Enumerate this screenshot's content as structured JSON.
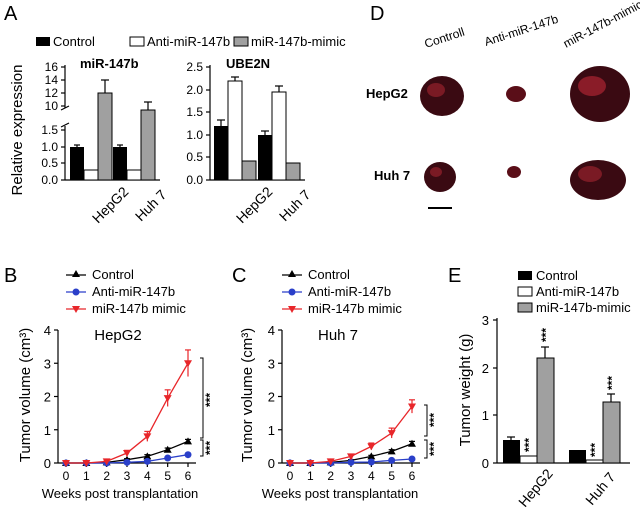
{
  "colors": {
    "control": "#000000",
    "anti": "#ffffff",
    "mimic": "#a0a0a0",
    "line_anti": "#2a3fc9",
    "line_mimic": "#e8262a",
    "tissue": "#3a0a12"
  },
  "panel_labels": {
    "A": "A",
    "B": "B",
    "C": "C",
    "D": "D",
    "E": "E"
  },
  "chart_data": [
    {
      "id": "A1",
      "type": "bar",
      "title": "miR-147b",
      "ylabel": "Relative expression",
      "categories": [
        "HepG2",
        "Huh 7"
      ],
      "series": [
        {
          "name": "Control",
          "values": [
            1.0,
            1.0
          ],
          "errors": [
            0.06,
            0.05
          ]
        },
        {
          "name": "Anti-miR-147b",
          "values": [
            0.28,
            0.28
          ],
          "errors": [
            0,
            0
          ]
        },
        {
          "name": "miR-147b-mimic",
          "values": [
            12.8,
            10.7
          ],
          "errors": [
            1.5,
            0.9
          ]
        }
      ],
      "axis_break": {
        "lower": [
          0,
          1.5
        ],
        "upper": [
          10,
          16
        ]
      },
      "yticks_lower": [
        "0.0",
        "0.5",
        "1.0",
        "1.5"
      ],
      "yticks_upper": [
        "10",
        "12",
        "14",
        "16"
      ]
    },
    {
      "id": "A2",
      "type": "bar",
      "title": "UBE2N",
      "categories": [
        "HepG2",
        "Huh 7"
      ],
      "series": [
        {
          "name": "Control",
          "values": [
            1.2,
            1.0
          ],
          "errors": [
            0.12,
            0.07
          ]
        },
        {
          "name": "Anti-miR-147b",
          "values": [
            2.2,
            1.95
          ],
          "errors": [
            0.07,
            0.14
          ]
        },
        {
          "name": "miR-147b-mimic",
          "values": [
            0.42,
            0.38
          ],
          "errors": [
            0.02,
            0.02
          ]
        }
      ],
      "ylim": [
        0,
        2.5
      ],
      "yticks": [
        "0.0",
        "0.5",
        "1.0",
        "1.5",
        "2.0",
        "2.5"
      ]
    },
    {
      "id": "B",
      "type": "line",
      "title": "HepG2",
      "xlabel": "Weeks post transplantation",
      "ylabel": "Tumor volume (cm³)",
      "x": [
        0,
        1,
        2,
        3,
        4,
        5,
        6
      ],
      "ylim": [
        0,
        4
      ],
      "series": [
        {
          "name": "Control",
          "values": [
            0,
            0,
            0.02,
            0.1,
            0.2,
            0.4,
            0.65
          ],
          "errors": [
            0,
            0,
            0,
            0.03,
            0.05,
            0.05,
            0.06
          ]
        },
        {
          "name": "Anti-miR-147b",
          "values": [
            0,
            0,
            0,
            0.02,
            0.05,
            0.15,
            0.25
          ],
          "errors": [
            0,
            0,
            0,
            0,
            0.02,
            0.03,
            0.04
          ]
        },
        {
          "name": "miR-147b mimic",
          "values": [
            0,
            0,
            0.05,
            0.3,
            0.8,
            1.95,
            3.0
          ],
          "errors": [
            0,
            0,
            0.02,
            0.08,
            0.15,
            0.25,
            0.4
          ]
        }
      ],
      "significance": [
        "***",
        "***"
      ]
    },
    {
      "id": "C",
      "type": "line",
      "title": "Huh 7",
      "xlabel": "Weeks post transplantation",
      "ylabel": "Tumor volume (cm³)",
      "x": [
        0,
        1,
        2,
        3,
        4,
        5,
        6
      ],
      "ylim": [
        0,
        4
      ],
      "series": [
        {
          "name": "Control",
          "values": [
            0,
            0,
            0.02,
            0.08,
            0.2,
            0.35,
            0.58
          ],
          "errors": [
            0,
            0,
            0,
            0.02,
            0.03,
            0.05,
            0.07
          ]
        },
        {
          "name": "Anti-miR-147b",
          "values": [
            0,
            0,
            0,
            0.02,
            0.03,
            0.08,
            0.12
          ],
          "errors": [
            0,
            0,
            0,
            0,
            0.01,
            0.02,
            0.02
          ]
        },
        {
          "name": "miR-147b mimic",
          "values": [
            0,
            0,
            0.05,
            0.2,
            0.5,
            0.9,
            1.7
          ],
          "errors": [
            0,
            0,
            0.02,
            0.05,
            0.1,
            0.15,
            0.2
          ]
        }
      ],
      "significance": [
        "***",
        "***"
      ]
    },
    {
      "id": "E",
      "type": "bar",
      "ylabel": "Tumor weight (g)",
      "categories": [
        "HepG2",
        "Huh 7"
      ],
      "ylim": [
        0,
        3
      ],
      "yticks": [
        "0",
        "1",
        "2",
        "3"
      ],
      "series": [
        {
          "name": "Control",
          "values": [
            0.47,
            0.27
          ],
          "errors": [
            0.03,
            0.02
          ]
        },
        {
          "name": "Anti-miR-147b",
          "values": [
            0.15,
            0.07
          ],
          "errors": [
            0.01,
            0.01
          ]
        },
        {
          "name": "miR-147b-mimic",
          "values": [
            2.2,
            1.28
          ],
          "errors": [
            0.22,
            0.15
          ]
        }
      ],
      "significance": [
        "***",
        "***",
        "***",
        "***"
      ]
    }
  ],
  "panelA": {
    "legend": [
      "Control",
      "Anti-miR-147b",
      "miR-147b-mimic"
    ],
    "ylabel": "Relative expression",
    "chart1_title": "miR-147b",
    "chart2_title": "UBE2N",
    "yticks_upper": [
      "16",
      "14",
      "12",
      "10"
    ],
    "yticks_lower": [
      "1.5",
      "1.0",
      "0.5",
      "0.0"
    ],
    "yticks2": [
      "2.5",
      "2.0",
      "1.5",
      "1.0",
      "0.5",
      "0.0"
    ],
    "xcats": [
      "HepG2",
      "Huh 7"
    ]
  },
  "panelB": {
    "legend": [
      "Control",
      "Anti-miR-147b",
      "miR-147b mimic"
    ],
    "title": "HepG2",
    "xlabel": "Weeks post transplantation",
    "ylabel": "Tumor volume (cm³)",
    "yticks": [
      "4",
      "3",
      "2",
      "1",
      "0"
    ],
    "xticks": [
      "0",
      "1",
      "2",
      "3",
      "4",
      "5",
      "6"
    ],
    "sig": [
      "***",
      "***"
    ]
  },
  "panelC": {
    "legend": [
      "Control",
      "Anti-miR-147b",
      "miR-147b mimic"
    ],
    "title": "Huh 7",
    "xlabel": "Weeks post transplantation",
    "ylabel": "Tumor volume (cm³)",
    "yticks": [
      "4",
      "3",
      "2",
      "1",
      "0"
    ],
    "xticks": [
      "0",
      "1",
      "2",
      "3",
      "4",
      "5",
      "6"
    ],
    "sig": [
      "***",
      "***"
    ]
  },
  "panelD": {
    "cols": [
      "Controll",
      "Anti-miR-147b",
      "miR-147b-mimic"
    ],
    "rows": [
      "HepG2",
      "Huh 7"
    ]
  },
  "panelE": {
    "legend": [
      "Control",
      "Anti-miR-147b",
      "miR-147b-mimic"
    ],
    "ylabel": "Tumor weight (g)",
    "yticks": [
      "3",
      "2",
      "1",
      "0"
    ],
    "xcats": [
      "HepG2",
      "Huh 7"
    ],
    "sig": [
      "***",
      "***",
      "***",
      "***"
    ]
  }
}
